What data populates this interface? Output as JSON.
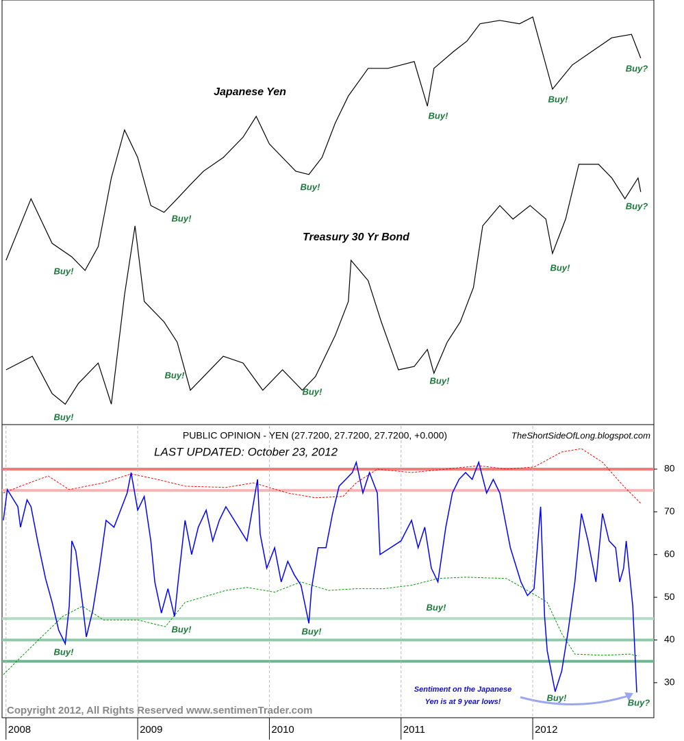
{
  "chart_data": [
    {
      "type": "line",
      "xlim": [
        2007.97,
        2012.92
      ],
      "ylim": [
        0,
        100
      ],
      "series": [
        {
          "name": "Japanese Yen",
          "color": "#000000",
          "x": [
            2008.0,
            2008.19,
            2008.35,
            2008.5,
            2008.6,
            2008.7,
            2008.8,
            2008.9,
            2009.0,
            2009.1,
            2009.2,
            2009.3,
            2009.4,
            2009.5,
            2009.65,
            2009.8,
            2009.9,
            2010.0,
            2010.1,
            2010.2,
            2010.3,
            2010.4,
            2010.5,
            2010.6,
            2010.75,
            2010.9,
            2011.0,
            2011.1,
            2011.2,
            2011.25,
            2011.4,
            2011.5,
            2011.6,
            2011.75,
            2011.9,
            2012.0,
            2012.1,
            2012.15,
            2012.3,
            2012.45,
            2012.6,
            2012.75,
            2012.82
          ],
          "values": [
            38.7,
            53.2,
            42.7,
            39.5,
            36.3,
            41.9,
            58.1,
            69.4,
            62.9,
            51.6,
            50,
            53.2,
            56.5,
            59.7,
            62.9,
            67.7,
            72.6,
            66.1,
            62.9,
            59.7,
            58.9,
            62.9,
            71,
            77.4,
            83.9,
            83.9,
            84.7,
            85.5,
            75,
            83.9,
            87.9,
            90.3,
            94.4,
            95.2,
            94.4,
            96,
            84.7,
            79,
            84.7,
            87.9,
            91.1,
            91.9,
            86.3
          ]
        },
        {
          "name": "Treasury 30 Yr Bond",
          "color": "#000000",
          "x": [
            2008.0,
            2008.2,
            2008.35,
            2008.45,
            2008.55,
            2008.7,
            2008.8,
            2008.9,
            2008.98,
            2009.05,
            2009.2,
            2009.3,
            2009.4,
            2009.5,
            2009.65,
            2009.8,
            2009.95,
            2010.1,
            2010.25,
            2010.35,
            2010.5,
            2010.6,
            2010.62,
            2010.75,
            2010.85,
            2010.98,
            2011.1,
            2011.2,
            2011.25,
            2011.35,
            2011.45,
            2011.55,
            2011.62,
            2011.75,
            2011.85,
            2011.98,
            2012.1,
            2012.15,
            2012.25,
            2012.35,
            2012.5,
            2012.6,
            2012.7,
            2012.8,
            2012.82
          ],
          "values": [
            12.9,
            16.1,
            7.3,
            4.8,
            9.7,
            14.5,
            4.8,
            30.6,
            46.8,
            29,
            24.2,
            19.4,
            8.1,
            11.3,
            16.1,
            14.5,
            8.1,
            12.9,
            8.1,
            11.3,
            21,
            29,
            38.7,
            33.9,
            24.2,
            12.9,
            13.7,
            17.7,
            12.1,
            19.4,
            24.2,
            32.3,
            46.8,
            51.6,
            48.4,
            51.6,
            48.4,
            40.3,
            48.4,
            61.3,
            61.3,
            58.1,
            53.2,
            58.1,
            54.8
          ]
        }
      ],
      "annotations": [
        "Buy!",
        "Buy!",
        "Buy!",
        "Buy!",
        "Buy!",
        "Buy?",
        "Buy!",
        "Buy!",
        "Buy!",
        "Buy!",
        "Buy!",
        "Buy?"
      ]
    },
    {
      "type": "line",
      "title": "PUBLIC OPINION - YEN (27.7200, 27.7200, 27.7200, +0.000)",
      "subtitle": "LAST UPDATED:  October 23, 2012",
      "credit": "TheShortSideOfLong.blogspot.com",
      "copyright": "Copyright 2012, All Rights Reserved   www.sentimenTrader.com",
      "xlim": [
        2007.97,
        2012.92
      ],
      "xticks": [
        2008,
        2009,
        2010,
        2011,
        2012
      ],
      "ylim": [
        21.8,
        90.1
      ],
      "yticks": [
        30,
        40,
        50,
        60,
        70,
        80
      ],
      "reference_lines": [
        {
          "value": 80,
          "color": "#f07c7c"
        },
        {
          "value": 75,
          "color": "#f7b4b4"
        },
        {
          "value": 45,
          "color": "#b4dcc4"
        },
        {
          "value": 40,
          "color": "#8ccaa8"
        },
        {
          "value": 35,
          "color": "#6ab690"
        }
      ],
      "series": [
        {
          "color": "#ff0000",
          "dashed": true,
          "x": [
            2007.98,
            2008.11,
            2008.32,
            2008.48,
            2008.74,
            2008.95,
            2009.15,
            2009.36,
            2009.67,
            2009.88,
            2010.14,
            2010.35,
            2010.56,
            2010.66,
            2010.82,
            2011.08,
            2011.34,
            2011.59,
            2011.8,
            2012.01,
            2012.22,
            2012.37,
            2012.53,
            2012.69,
            2012.82
          ],
          "values": [
            74.4,
            76.0,
            78.4,
            75.2,
            76.8,
            78.9,
            77.6,
            76.0,
            75.7,
            76.8,
            74.4,
            73.3,
            73.6,
            76.8,
            80.0,
            79.2,
            80.0,
            80.8,
            80.0,
            80.5,
            84.0,
            84.8,
            81.6,
            76.0,
            72.0
          ]
        },
        {
          "color": "#009900",
          "dashed": true,
          "x": [
            2007.98,
            2008.11,
            2008.27,
            2008.43,
            2008.58,
            2008.74,
            2009.0,
            2009.21,
            2009.36,
            2009.67,
            2009.83,
            2010.04,
            2010.24,
            2010.45,
            2010.66,
            2010.87,
            2011.08,
            2011.28,
            2011.49,
            2011.8,
            2012.01,
            2012.11,
            2012.22,
            2012.32,
            2012.53,
            2012.74,
            2012.79
          ],
          "values": [
            31.9,
            35.9,
            40.7,
            45.5,
            47.9,
            44.7,
            44.7,
            43.1,
            48.8,
            51.6,
            52.3,
            51.2,
            53.6,
            51.6,
            52.0,
            52.0,
            52.8,
            54.4,
            54.7,
            54.4,
            50.7,
            48.8,
            41.5,
            36.7,
            36.4,
            36.7,
            36.3
          ]
        },
        {
          "color": "#0000ff",
          "dashed": false,
          "x": [
            2007.98,
            2008.01,
            2008.09,
            2008.11,
            2008.16,
            2008.19,
            2008.24,
            2008.3,
            2008.35,
            2008.4,
            2008.45,
            2008.48,
            2008.5,
            2008.53,
            2008.58,
            2008.61,
            2008.66,
            2008.71,
            2008.76,
            2008.82,
            2008.87,
            2008.92,
            2008.95,
            2009.0,
            2009.05,
            2009.1,
            2009.13,
            2009.18,
            2009.23,
            2009.28,
            2009.31,
            2009.36,
            2009.41,
            2009.46,
            2009.52,
            2009.57,
            2009.62,
            2009.67,
            2009.75,
            2009.83,
            2009.91,
            2009.93,
            2009.98,
            2010.04,
            2010.09,
            2010.14,
            2010.19,
            2010.24,
            2010.3,
            2010.32,
            2010.37,
            2010.43,
            2010.48,
            2010.53,
            2010.58,
            2010.63,
            2010.66,
            2010.71,
            2010.76,
            2010.82,
            2010.84,
            2010.92,
            2011.0,
            2011.08,
            2011.13,
            2011.18,
            2011.23,
            2011.28,
            2011.34,
            2011.39,
            2011.44,
            2011.49,
            2011.54,
            2011.59,
            2011.65,
            2011.7,
            2011.75,
            2011.78,
            2011.83,
            2011.91,
            2011.96,
            2012.01,
            2012.06,
            2012.09,
            2012.11,
            2012.17,
            2012.22,
            2012.27,
            2012.32,
            2012.37,
            2012.42,
            2012.48,
            2012.53,
            2012.58,
            2012.63,
            2012.66,
            2012.69,
            2012.71,
            2012.76,
            2012.79
          ],
          "values": [
            68.0,
            75.2,
            71.2,
            66.4,
            72.8,
            71.2,
            63.2,
            54.4,
            48.8,
            42.3,
            39.1,
            47.9,
            63.2,
            60.8,
            48.8,
            40.7,
            47.1,
            56.8,
            68.0,
            66.4,
            70.4,
            74.4,
            79.2,
            70.4,
            73.6,
            63.2,
            53.6,
            46.3,
            52.0,
            45.5,
            54.4,
            68.0,
            60.0,
            66.4,
            70.4,
            63.2,
            68.0,
            71.2,
            67.2,
            63.2,
            77.6,
            64.8,
            56.8,
            61.6,
            53.6,
            58.4,
            55.2,
            52.8,
            43.9,
            52.0,
            61.6,
            61.6,
            69.6,
            76.0,
            77.6,
            79.2,
            81.6,
            74.4,
            79.2,
            74.4,
            60.0,
            61.6,
            63.2,
            68.0,
            61.6,
            66.4,
            56.8,
            53.6,
            66.4,
            74.4,
            77.6,
            79.2,
            77.6,
            81.6,
            74.4,
            77.6,
            74.4,
            69.6,
            61.6,
            53.6,
            50.4,
            52.0,
            71.2,
            45.5,
            37.5,
            27.9,
            32.7,
            42.3,
            53.6,
            69.6,
            63.2,
            53.6,
            69.6,
            63.2,
            61.6,
            53.6,
            56.8,
            63.2,
            47.9,
            27.72
          ]
        }
      ],
      "annotations": [
        "Buy!",
        "Buy!",
        "Buy!",
        "Buy!",
        "Buy!",
        "Buy?",
        "Sentiment on the Japanese",
        "Yen is at 9 year lows!"
      ]
    }
  ]
}
